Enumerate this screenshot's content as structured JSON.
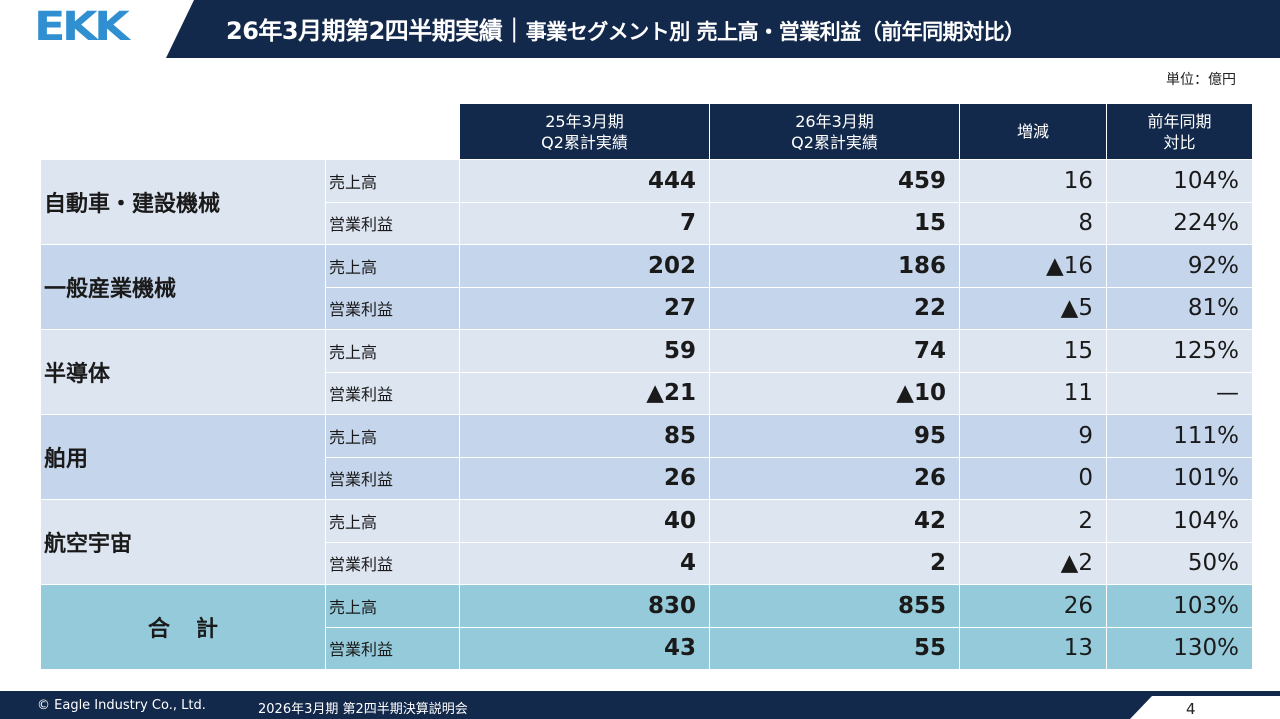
{
  "header": {
    "logo": "EKK",
    "title": "26年3月期第2四半期実績｜",
    "subtitle": "事業セグメント別 売上高・営業利益（前年同期対比）"
  },
  "unit": "単位：億円",
  "colors": {
    "navy": "#13294b",
    "logo_blue": "#2f8fd0",
    "row_light": "#dde5f1",
    "row_dark": "#c5d6ec",
    "row_total": "#95cadb"
  },
  "table": {
    "headers": {
      "prev_line1": "25年3月期",
      "prev_line2": "Q2累計実績",
      "curr_line1": "26年3月期",
      "curr_line2": "Q2累計実績",
      "diff": "増減",
      "ratio_line1": "前年同期",
      "ratio_line2": "対比"
    },
    "segments": [
      {
        "name": "自動車・建設機械",
        "rows": [
          {
            "metric": "売上高",
            "prev": "444",
            "curr": "459",
            "diff": "16",
            "ratio": "104%"
          },
          {
            "metric": "営業利益",
            "prev": "7",
            "curr": "15",
            "diff": "8",
            "ratio": "224%"
          }
        ]
      },
      {
        "name": "一般産業機械",
        "rows": [
          {
            "metric": "売上高",
            "prev": "202",
            "curr": "186",
            "diff": "▲16",
            "ratio": "92%"
          },
          {
            "metric": "営業利益",
            "prev": "27",
            "curr": "22",
            "diff": "▲5",
            "ratio": "81%"
          }
        ]
      },
      {
        "name": "半導体",
        "rows": [
          {
            "metric": "売上高",
            "prev": "59",
            "curr": "74",
            "diff": "15",
            "ratio": "125%"
          },
          {
            "metric": "営業利益",
            "prev": "▲21",
            "curr": "▲10",
            "diff": "11",
            "ratio": "—"
          }
        ]
      },
      {
        "name": "舶用",
        "rows": [
          {
            "metric": "売上高",
            "prev": "85",
            "curr": "95",
            "diff": "9",
            "ratio": "111%"
          },
          {
            "metric": "営業利益",
            "prev": "26",
            "curr": "26",
            "diff": "0",
            "ratio": "101%"
          }
        ]
      },
      {
        "name": "航空宇宙",
        "rows": [
          {
            "metric": "売上高",
            "prev": "40",
            "curr": "42",
            "diff": "2",
            "ratio": "104%"
          },
          {
            "metric": "営業利益",
            "prev": "4",
            "curr": "2",
            "diff": "▲2",
            "ratio": "50%"
          }
        ]
      },
      {
        "name": "合計",
        "rows": [
          {
            "metric": "売上高",
            "prev": "830",
            "curr": "855",
            "diff": "26",
            "ratio": "103%"
          },
          {
            "metric": "営業利益",
            "prev": "43",
            "curr": "55",
            "diff": "13",
            "ratio": "130%"
          }
        ]
      }
    ]
  },
  "footer": {
    "copyright": "© Eagle Industry Co., Ltd.",
    "event": "2026年3月期 第2四半期決算説明会",
    "page": "4"
  }
}
